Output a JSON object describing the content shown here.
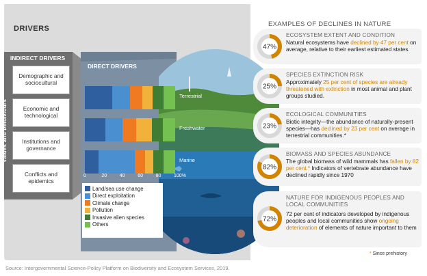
{
  "drivers_title": "DRIVERS",
  "indirect_header": "INDIRECT DRIVERS",
  "values_label": "Values and behaviours",
  "indirect_items": [
    "Demographic and sociocultural",
    "Economic and technological",
    "Institutions and governance",
    "Conflicts and epidemics"
  ],
  "direct_title": "DIRECT DRIVERS",
  "realms": [
    "Terrestrial",
    "Freshwater",
    "Marine"
  ],
  "ticks": [
    "0",
    "20",
    "40",
    "60",
    "80",
    "100%"
  ],
  "legend": [
    {
      "label": "Land/sea use change",
      "color": "#2f5f9e"
    },
    {
      "label": "Direct exploitation",
      "color": "#4a90d0"
    },
    {
      "label": "Climate change",
      "color": "#ef7a22"
    },
    {
      "label": "Pollution",
      "color": "#f2b13a"
    },
    {
      "label": "Invasive alien species",
      "color": "#3f7d32"
    },
    {
      "label": "Others",
      "color": "#74c050"
    }
  ],
  "chart_data": {
    "type": "bar",
    "stacked": true,
    "orientation": "horizontal",
    "categories": [
      "Terrestrial",
      "Freshwater",
      "Marine"
    ],
    "series": [
      {
        "name": "Land/sea use change",
        "values": [
          30,
          23,
          15
        ]
      },
      {
        "name": "Direct exploitation",
        "values": [
          20,
          19,
          40
        ]
      },
      {
        "name": "Climate change",
        "values": [
          14,
          15,
          12
        ]
      },
      {
        "name": "Pollution",
        "values": [
          11,
          17,
          9
        ]
      },
      {
        "name": "Invasive alien species",
        "values": [
          12,
          12,
          11
        ]
      },
      {
        "name": "Others",
        "values": [
          13,
          14,
          13
        ]
      }
    ],
    "xlim": [
      0,
      100
    ]
  },
  "examples_title": "EXAMPLES OF DECLINES IN NATURE",
  "cards": [
    {
      "pct": 47,
      "pct_label": "47%",
      "head": "ECOSYSTEM EXTENT AND CONDITION",
      "body": [
        {
          "t": "Natural ecosystems have ",
          "hl": false
        },
        {
          "t": "declined by 47 per cent",
          "hl": true
        },
        {
          "t": " on average, relative to their earliest estimated states.",
          "hl": false
        }
      ]
    },
    {
      "pct": 25,
      "pct_label": "25%",
      "head": "SPECIES EXTINCTION RISK",
      "body": [
        {
          "t": "Approximately ",
          "hl": false
        },
        {
          "t": "25 per cent of species are already threatened with extinction",
          "hl": true
        },
        {
          "t": " in most animal and plant groups studied.",
          "hl": false
        }
      ]
    },
    {
      "pct": 23,
      "pct_label": "23%",
      "head": "ECOLOGICAL COMMUNITIES",
      "body": [
        {
          "t": "Biotic integrity—the abundance of naturally-present species—has ",
          "hl": false
        },
        {
          "t": "declined by 23 per cent",
          "hl": true
        },
        {
          "t": " on average in terrestrial communities.*",
          "hl": false
        }
      ]
    },
    {
      "pct": 82,
      "pct_label": "82%",
      "head": "BIOMASS AND SPECIES ABUNDANCE",
      "body": [
        {
          "t": "The global biomass of wild mammals has ",
          "hl": false
        },
        {
          "t": "fallen by 82 per cent.*",
          "hl": true
        },
        {
          "t": " Indicators of vertebrate abundance have declined rapidly since 1970",
          "hl": false
        }
      ]
    },
    {
      "pct": 72,
      "pct_label": "72%",
      "head": "NATURE FOR INDIGENOUS PEOPLES AND LOCAL COMMUNITIES",
      "body": [
        {
          "t": "72 per cent of indicators developed by indigenous peoples and local communities show ",
          "hl": false
        },
        {
          "t": "ongoing deterioration",
          "hl": true
        },
        {
          "t": " of elements of nature important to them",
          "hl": false
        }
      ]
    }
  ],
  "footnote": "* Since prehistory",
  "source": "Source: Intergovernmental Science-Policy Platform on Biodiversity and Ecosystem Services, 2019.",
  "colors": {
    "accent": "#d08400",
    "donut_track": "#d8d8d8",
    "panel": "#dcdcdc"
  }
}
